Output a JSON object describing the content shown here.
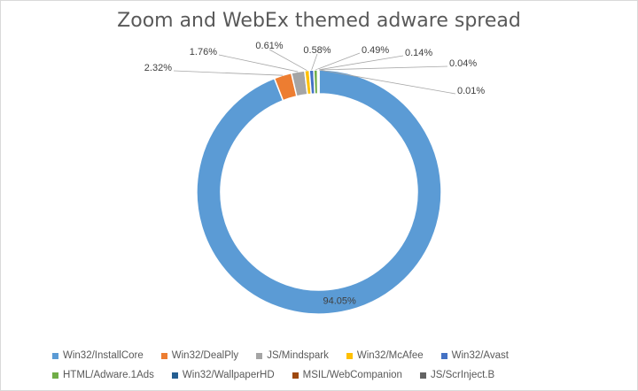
{
  "chart_data": {
    "type": "pie",
    "title": "Zoom and WebEx themed adware spread",
    "categories": [
      "Win32/InstallCore",
      "Win32/DealPly",
      "JS/Mindspark",
      "Win32/McAfee",
      "Win32/Avast",
      "HTML/Adware.1Ads",
      "Win32/WallpaperHD",
      "MSIL/WebCompanion",
      "JS/ScrInject.B"
    ],
    "values": [
      94.05,
      2.32,
      1.76,
      0.61,
      0.58,
      0.49,
      0.14,
      0.04,
      0.01
    ],
    "data_labels": [
      "94.05%",
      "2.32%",
      "1.76%",
      "0.61%",
      "0.58%",
      "0.49%",
      "0.14%",
      "0.04%",
      "0.01%"
    ],
    "colors": [
      "#5b9bd5",
      "#ed7d31",
      "#a5a5a5",
      "#ffc000",
      "#4472c4",
      "#70ad47",
      "#255e91",
      "#9e480e",
      "#636363"
    ],
    "style": "doughnut",
    "legend_position": "bottom"
  }
}
